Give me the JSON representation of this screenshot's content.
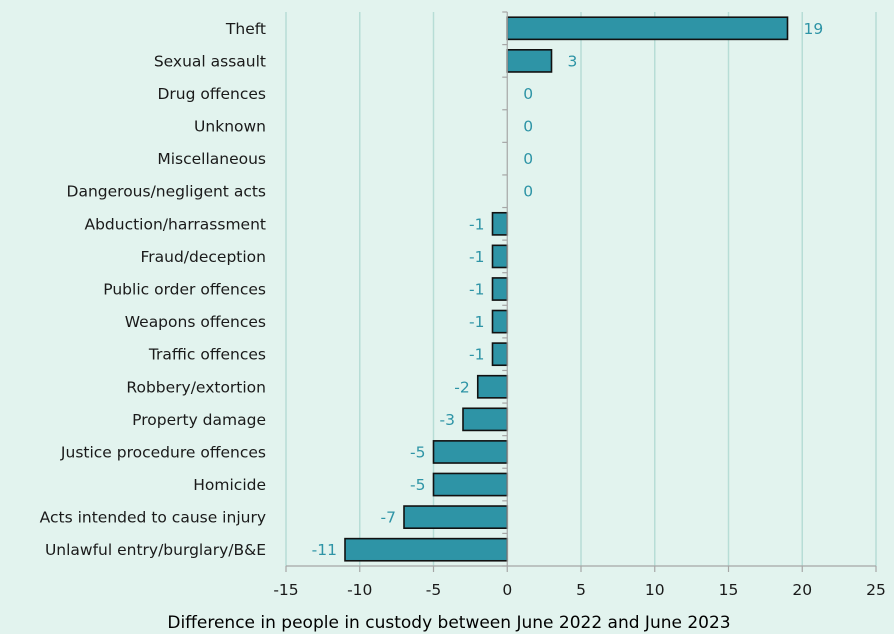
{
  "chart_data": {
    "type": "bar",
    "orientation": "horizontal",
    "categories": [
      "Theft",
      "Sexual assault",
      "Drug offences",
      "Unknown",
      "Miscellaneous",
      "Dangerous/negligent acts",
      "Abduction/harrassment",
      "Fraud/deception",
      "Public order offences",
      "Weapons offences",
      "Traffic offences",
      "Robbery/extortion",
      "Property damage",
      "Justice procedure offences",
      "Homicide",
      "Acts intended to cause injury",
      "Unlawful entry/burglary/B&E"
    ],
    "values": [
      19,
      3,
      0,
      0,
      0,
      0,
      -1,
      -1,
      -1,
      -1,
      -1,
      -2,
      -3,
      -5,
      -5,
      -7,
      -11
    ],
    "title": "",
    "xlabel": "Difference in people in custody between June 2022 and June 2023",
    "ylabel": "",
    "xlim": [
      -15,
      25
    ],
    "xticks": [
      -15,
      -10,
      -5,
      0,
      5,
      10,
      15,
      20,
      25
    ],
    "grid": "vertical",
    "legend": "none",
    "colors": {
      "bar_fill": "#2e94a6",
      "bar_stroke": "#111111",
      "data_label": "#2e94a6",
      "grid": "#b7ddd6",
      "axis": "#a6a6a6",
      "background": "#e2f3ee"
    }
  }
}
